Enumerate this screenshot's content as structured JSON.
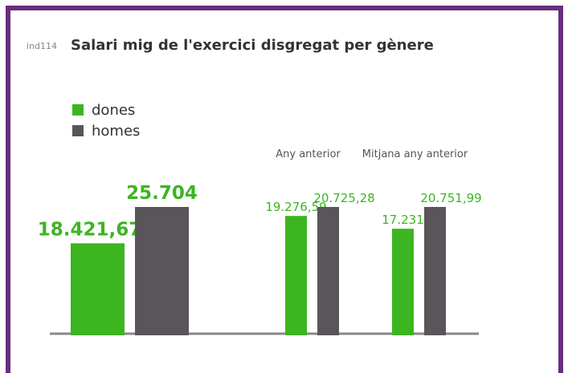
{
  "chart_data": {
    "type": "bar",
    "code": "ind114",
    "title": "Salari mig de l'exercici disgregat per gènere",
    "categories": [
      null,
      "Any anterior",
      "Mitjana any anterior"
    ],
    "series": [
      {
        "name": "dones",
        "color": "#3cb521",
        "values": [
          18421.67,
          19276.59,
          17231
        ],
        "value_labels": [
          "18.421,67",
          "19.276,59",
          "17.231"
        ]
      },
      {
        "name": "homes",
        "color": "#5a555a",
        "values": [
          25704,
          20725.28,
          20751.99
        ],
        "value_labels": [
          "25.704",
          "20.725,28",
          "20.751,99"
        ]
      }
    ]
  }
}
